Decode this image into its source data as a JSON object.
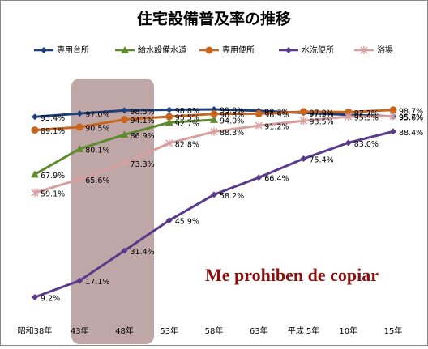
{
  "chart_data": {
    "type": "line",
    "title": "住宅設備普及率の推移",
    "categories": [
      "昭和38年",
      "43年",
      "48年",
      "53年",
      "58年",
      "63年",
      "平成 5年",
      "10年",
      "15年"
    ],
    "series": [
      {
        "name": "専用台所",
        "color": "#1f3f7a",
        "marker": "diamond",
        "values": [
          95.4,
          97.0,
          98.5,
          98.8,
          99.0,
          98.3,
          97.3,
          96.4,
          95.6
        ],
        "value_labels": [
          "95.4%",
          "97.0%",
          "98.5%",
          "98.8%",
          "99.0%",
          "98.3%",
          "97.3%",
          "96.4%",
          "95.6%"
        ]
      },
      {
        "name": "給水設備水道",
        "color": "#5f8a2e",
        "marker": "triangle",
        "values": [
          67.9,
          80.1,
          86.9,
          92.7,
          94.0,
          null,
          null,
          null,
          null
        ],
        "value_labels": [
          "67.9%",
          "80.1%",
          "86.9%",
          "92.7%",
          "94.0%",
          null,
          null,
          null,
          null
        ]
      },
      {
        "name": "専用便所",
        "color": "#c8661e",
        "marker": "circle",
        "values": [
          89.1,
          90.5,
          94.1,
          95.5,
          96.8,
          96.9,
          97.9,
          97.7,
          98.7
        ],
        "value_labels": [
          "89.1%",
          "90.5%",
          "94.1%",
          "95.5%",
          "96.8%",
          "96.9%",
          "97.9%",
          "97.7%",
          "98.7%"
        ]
      },
      {
        "name": "水洗便所",
        "color": "#5a3a8a",
        "marker": "diamond",
        "values": [
          9.2,
          17.1,
          31.4,
          45.9,
          58.2,
          66.4,
          75.4,
          83.0,
          88.4
        ],
        "value_labels": [
          "9.2%",
          "17.1%",
          "31.4%",
          "45.9%",
          "58.2%",
          "66.4%",
          "75.4%",
          "83.0%",
          "88.4%"
        ]
      },
      {
        "name": "浴場",
        "color": "#d6a0a0",
        "marker": "star",
        "values": [
          59.1,
          65.6,
          73.3,
          82.8,
          88.3,
          91.2,
          93.5,
          95.5,
          95.7
        ],
        "value_labels": [
          "59.1%",
          "65.6%",
          "73.3%",
          "82.8%",
          "88.3%",
          "91.2%",
          "93.5%",
          "95.5%",
          "95.7%"
        ]
      }
    ],
    "watermark": "Me prohiben de copiar"
  }
}
